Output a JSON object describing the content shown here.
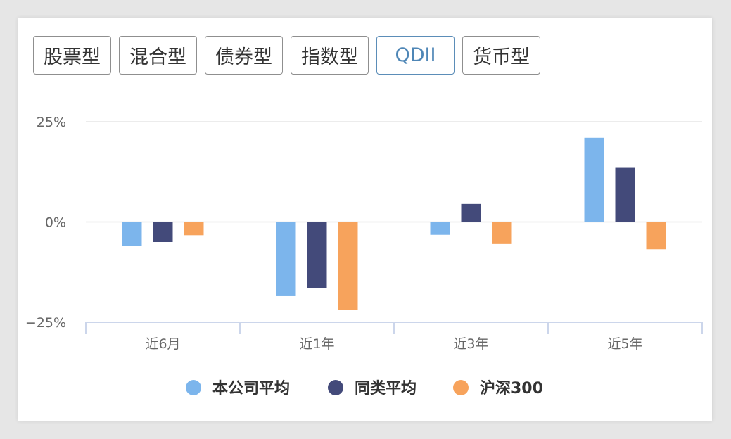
{
  "tabs": [
    {
      "label": "股票型",
      "active": false
    },
    {
      "label": "混合型",
      "active": false
    },
    {
      "label": "债券型",
      "active": false
    },
    {
      "label": "指数型",
      "active": false
    },
    {
      "label": "QDII",
      "active": true
    },
    {
      "label": "货币型",
      "active": false
    }
  ],
  "chart_data": {
    "type": "bar",
    "categories": [
      "近6月",
      "近1年",
      "近3年",
      "近5年"
    ],
    "series": [
      {
        "name": "本公司平均",
        "color": "#7cb5ec",
        "values": [
          -6,
          -18.5,
          -3.2,
          21
        ]
      },
      {
        "name": "同类平均",
        "color": "#434a7a",
        "values": [
          -5,
          -16.5,
          4.5,
          13.5
        ]
      },
      {
        "name": "沪深300",
        "color": "#f7a35c",
        "values": [
          -3.3,
          -22,
          -5.5,
          -6.8
        ]
      }
    ],
    "y_ticks": [
      25,
      0,
      -25
    ],
    "y_tick_labels": [
      "25%",
      "0%",
      "−25%"
    ],
    "ylim": [
      -25,
      25
    ],
    "grid": true,
    "legend_position": "bottom-center"
  }
}
